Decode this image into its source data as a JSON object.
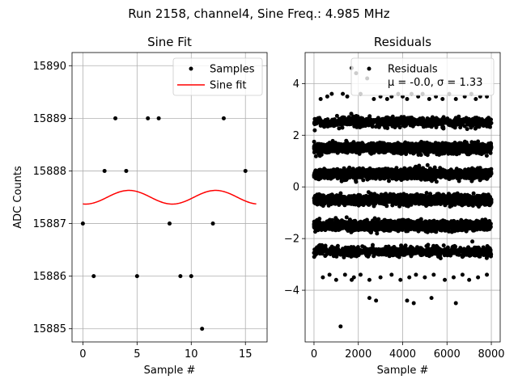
{
  "suptitle": "Run 2158, channel4, Sine Freq.: 4.985 MHz",
  "chart_data": [
    {
      "type": "scatter",
      "title": "Sine Fit",
      "xlabel": "Sample #",
      "ylabel": "ADC Counts",
      "xlim": [
        -1,
        17
      ],
      "ylim": [
        15884.75,
        15890.25
      ],
      "xticks": [
        0,
        5,
        10,
        15
      ],
      "yticks": [
        15885,
        15886,
        15887,
        15888,
        15889,
        15890
      ],
      "grid": true,
      "legend": {
        "position": "top-right",
        "entries": [
          {
            "label": "Samples",
            "marker": "dot",
            "color": "#000000"
          },
          {
            "label": "Sine fit",
            "marker": "line",
            "color": "#ff0000"
          }
        ]
      },
      "series": [
        {
          "name": "Samples",
          "kind": "points",
          "color": "#000000",
          "x": [
            0,
            1,
            2,
            3,
            4,
            5,
            6,
            7,
            8,
            9,
            10,
            11,
            12,
            13,
            15
          ],
          "y": [
            15887,
            15886,
            15888,
            15889,
            15888,
            15886,
            15889,
            15889,
            15887,
            15886,
            15886,
            15885,
            15887,
            15889,
            15888
          ]
        },
        {
          "name": "Sine fit",
          "kind": "line",
          "color": "#ff0000",
          "mean": 15887.5,
          "amplitude": 0.13,
          "period": 8,
          "peak_x": 4.25,
          "x_range": [
            0,
            16
          ]
        }
      ]
    },
    {
      "type": "scatter",
      "title": "Residuals",
      "xlabel": "Sample #",
      "ylabel": "",
      "xlim": [
        -400,
        8400
      ],
      "ylim": [
        -6,
        5.2
      ],
      "xticks": [
        0,
        2000,
        4000,
        6000,
        8000
      ],
      "yticks": [
        -4,
        -2,
        0,
        2,
        4
      ],
      "grid": true,
      "legend": {
        "position": "top-right",
        "entries": [
          {
            "label": "Residuals",
            "line2": "μ = -0.0, σ = 1.33",
            "marker": "dot",
            "color": "#000000"
          }
        ]
      },
      "mu": -0.0,
      "sigma": 1.33,
      "bands": [
        {
          "center": 2.5,
          "spread": 0.09,
          "count": 700,
          "x_range": [
            0,
            8000
          ]
        },
        {
          "center": 1.5,
          "spread": 0.09,
          "count": 1800,
          "x_range": [
            0,
            8000
          ]
        },
        {
          "center": 0.5,
          "spread": 0.09,
          "count": 1800,
          "x_range": [
            0,
            8000
          ]
        },
        {
          "center": -0.5,
          "spread": 0.09,
          "count": 1800,
          "x_range": [
            0,
            8000
          ]
        },
        {
          "center": -1.5,
          "spread": 0.09,
          "count": 1800,
          "x_range": [
            0,
            8000
          ]
        },
        {
          "center": -2.5,
          "spread": 0.09,
          "count": 700,
          "x_range": [
            0,
            8000
          ]
        }
      ],
      "sparse_points": {
        "x": [
          300,
          600,
          800,
          1300,
          1500,
          1700,
          1900,
          2100,
          2400,
          2700,
          3000,
          3300,
          3500,
          3800,
          4000,
          4200,
          4400,
          4700,
          4900,
          5200,
          5500,
          5800,
          6100,
          6400,
          6800,
          7100,
          7300,
          7500,
          7800,
          400,
          700,
          1000,
          1400,
          1800,
          2100,
          2500,
          3000,
          3500,
          3900,
          4300,
          4600,
          5000,
          5400,
          5900,
          6300,
          6700,
          7000,
          7400,
          7800,
          1700,
          2500,
          2800,
          4200,
          4500,
          5300,
          6400,
          1200
        ],
        "y": [
          3.4,
          3.5,
          3.6,
          3.6,
          3.5,
          4.6,
          4.4,
          3.6,
          4.2,
          3.4,
          3.5,
          3.4,
          3.5,
          3.6,
          3.5,
          3.4,
          3.6,
          3.5,
          3.6,
          3.4,
          3.5,
          3.4,
          3.6,
          3.4,
          3.5,
          3.6,
          3.4,
          3.5,
          3.5,
          -3.5,
          -3.4,
          -3.6,
          -3.4,
          -3.5,
          -3.4,
          -3.6,
          -3.5,
          -3.4,
          -3.6,
          -3.5,
          -3.4,
          -3.5,
          -3.4,
          -3.6,
          -3.5,
          -3.4,
          -3.6,
          -3.5,
          -3.4,
          -3.6,
          -4.3,
          -4.4,
          -4.4,
          -4.5,
          -4.3,
          -4.5,
          -5.4
        ]
      }
    }
  ]
}
